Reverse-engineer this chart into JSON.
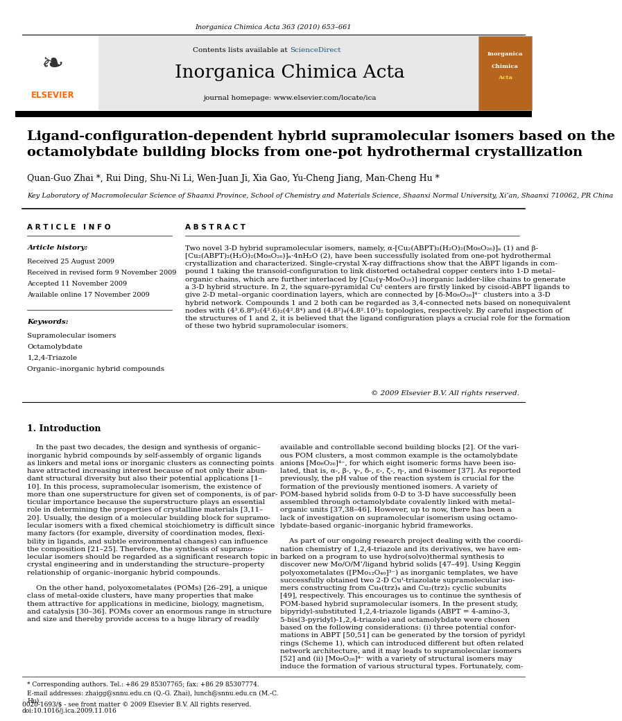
{
  "page_width": 9.92,
  "page_height": 13.23,
  "bg_color": "#ffffff",
  "top_journal_ref": "Inorganica Chimica Acta 363 (2010) 653–661",
  "header_bg": "#e8e8e8",
  "header_journal_name": "Inorganica Chimica Acta",
  "header_contents_text": "Contents lists available at ",
  "header_sciencedirect": "ScienceDirect",
  "header_homepage": "journal homepage: www.elsevier.com/locate/ica",
  "elsevier_color": "#ff6600",
  "sciencedirect_color": "#1a5276",
  "paper_title": "Ligand-configuration-dependent hybrid supramolecular isomers based on the\noctamolybdate building blocks from one-pot hydrothermal crystallization",
  "authors": "Quan-Guo Zhai *, Rui Ding, Shu-Ni Li, Wen-Juan Ji, Xia Gao, Yu-Cheng Jiang, Man-Cheng Hu *",
  "affiliation": "Key Laboratory of Macromolecular Science of Shaanxi Province, School of Chemistry and Materials Science, Shaanxi Normal University, Xi’an, Shaanxi 710062, PR China",
  "article_info_title": "A R T I C L E   I N F O",
  "abstract_title": "A B S T R A C T",
  "article_history_label": "Article history:",
  "received_date": "Received 25 August 2009",
  "received_revised": "Received in revised form 9 November 2009",
  "accepted": "Accepted 11 November 2009",
  "available": "Available online 17 November 2009",
  "keywords_label": "Keywords:",
  "keywords": [
    "Supramolecular isomers",
    "Octamolybdate",
    "1,2,4-Triazole",
    "Organic–inorganic hybrid compounds"
  ],
  "abstract_text": "Two novel 3-D hybrid supramolecular isomers, namely, α-[Cu₂(ABPT)₂(H₂O)₂(Mo₈O₂₆)]ₙ (1) and β-\n[Cu₂(ABPT)₂(H₂O)₂(Mo₈O₂₆)]ₙ·4nH₂O (2), have been successfully isolated from one-pot hydrothermal\ncrystallization and characterized. Single-crystal X-ray diffractions show that the ABPT ligands in com-\npound 1 taking the transoid-configuration to link distorted octahedral copper centers into 1-D metal–\norganic chains, which are further interlaced by [Cu₂(γ-Mo₈O₂₆)] inorganic ladder-like chains to generate\na 3-D hybrid structure. In 2, the square-pyramidal Cuᴵ centers are firstly linked by cisoid-ABPT ligands to\ngive 2-D metal–organic coordination layers, which are connected by [δ-Mo₈O₂₆]⁴⁻ clusters into a 3-D\nhybrid network. Compounds 1 and 2 both can be regarded as 3,4-connected nets based on nonequivalent\nnodes with (4³.6.8⁸)₂(4².6)₂(4².8⁴) and (4.8²)₄(4.8².10³)₂ topologies, respectively. By careful inspection of\nthe structures of 1 and 2, it is believed that the ligand configuration plays a crucial role for the formation\nof these two hybrid supramolecular isomers.",
  "copyright": "© 2009 Elsevier B.V. All rights reserved.",
  "intro_title": "1. Introduction",
  "intro_col1": "    In the past two decades, the design and synthesis of organic–\ninorganic hybrid compounds by self-assembly of organic ligands\nas linkers and metal ions or inorganic clusters as connecting points\nhave attracted increasing interest because of not only their abun-\ndant structural diversity but also their potential applications [1–\n10]. In this process, supramolecular isomerism, the existence of\nmore than one superstructure for given set of components, is of par-\nticular importance because the superstructure plays an essential\nrole in determining the properties of crystalline materials [3,11–\n20]. Usually, the design of a molecular building block for supramo-\nlecular isomers with a fixed chemical stoichiometry is difficult since\nmany factors (for example, diversity of coordination modes, flexi-\nbility in ligands, and subtle environmental changes) can influence\nthe composition [21–25]. Therefore, the synthesis of supramo-\nlecular isomers should be regarded as a significant research topic in\ncrystal engineering and in understanding the structure–property\nrelationship of organic–inorganic hybrid compounds.\n\n    On the other hand, polyoxometalates (POMs) [26–29], a unique\nclass of metal-oxide clusters, have many properties that make\nthem attractive for applications in medicine, biology, magnetism,\nand catalysis [30–36]. POMs cover an enormous range in structure\nand size and thereby provide access to a huge library of readily",
  "intro_col2": "available and controllable second building blocks [2]. Of the vari-\nous POM clusters, a most common example is the octamolybdate\nanions [Mo₈O₂₆]⁴⁻, for which eight isomeric forms have been iso-\nlated, that is, α-, β-, γ-, δ-, ε-, ζ-, η-, and θ-isomer [37]. As reported\npreviously, the pH value of the reaction system is crucial for the\nformation of the previously mentioned isomers. A variety of\nPOM-based hybrid solids from 0-D to 3-D have successfully been\nassembled through octamolybdate covalently linked with metal–\norganic units [37,38–46]. However, up to now, there has been a\nlack of investigation on supramolecular isomerism using octamo-\nlybdate-based organic–inorganic hybrid frameworks.\n\n    As part of our ongoing research project dealing with the coordi-\nnation chemistry of 1,2,4-triazole and its derivatives, we have em-\nbarked on a program to use hydro(solvo)thermal synthesis to\ndiscover new Mo/O/M’/ligand hybrid solids [47–49]. Using Keggin\npolyoxometalates ([PMo₁₂O₄₀]³⁻) as inorganic templates, we have\nsuccessfully obtained two 2-D Cuᴵ-triazolate supramolecular iso-\nmers constructing from Cu₄(trz)₄ and Cu₂(trz)₃ cyclic subunits\n[49], respectively. This encourages us to continue the synthesis of\nPOM-based hybrid supramolecular isomers. In the present study,\nbipyridyl-substituted 1,2,4-triazole ligands (ABPT = 4-amino-3,\n5-bis(3-pyridyl)-1,2,4-triazole) and octamolybdate were chosen\nbased on the following considerations: (i) three potential confor-\nmations in ABPT [50,51] can be generated by the torsion of pyridyl\nrings (Scheme 1), which can introduced different but often related\nnetwork architecture, and it may leads to supramolecular isomers\n[52] and (ii) [Mo₈O₂₆]⁴⁻ with a variety of structural isomers may\ninduce the formation of various structural types. Fortunately, com-",
  "footnote_star": "* Corresponding authors. Tel.: +86 29 85307765; fax: +86 29 85307774.",
  "footnote_email": "E-mail addresses: zhaigg@snnu.edu.cn (Q.-G. Zhai), lunch@snnu.edu.cn (M.-C.\nHu).",
  "footer_issn": "0020-1693/$ - see front matter © 2009 Elsevier B.V. All rights reserved.",
  "footer_doi": "doi:10.1016/j.ica.2009.11.016"
}
